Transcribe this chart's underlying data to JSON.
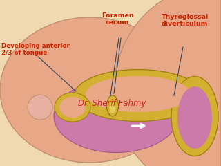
{
  "labels": {
    "foramen_cecum": "Foramen\ncecum",
    "developing_tongue": "Developing anterior\n2/3 of tongue",
    "thyroglossal": "Thyroglossal\ndiverticulum",
    "watermark": "Dr. Sherif Fahmy"
  },
  "colors": {
    "outer_fill": "#e8a888",
    "pink_lower": "#cc7aaa",
    "yellow_main": "#d4b030",
    "yellow_light": "#e8cc60",
    "background": "#f0d8b0",
    "line_color": "#334455",
    "label_color": "#cc2200",
    "watermark_color": "#cc1818",
    "edge_salmon": "#c09070"
  }
}
